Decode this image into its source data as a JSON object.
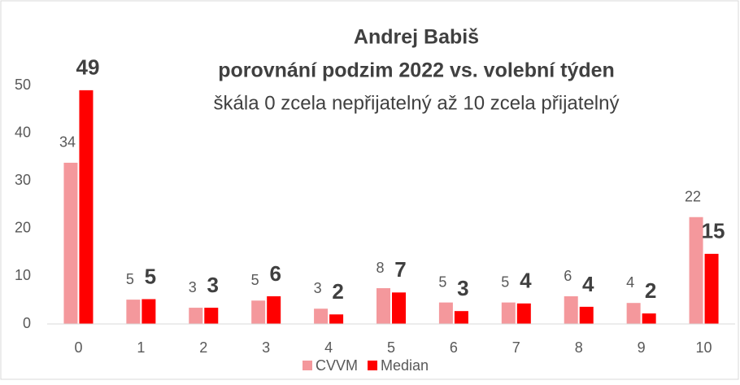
{
  "chart_data": {
    "type": "bar",
    "title": "Andrej Babiš",
    "subtitle": "porovnání podzim 2022 vs. volební týden",
    "subtitle2": "škála 0 zcela nepřijatelný až 10 zcela přijatelný",
    "categories": [
      "0",
      "1",
      "2",
      "3",
      "4",
      "5",
      "6",
      "7",
      "8",
      "9",
      "10"
    ],
    "series": [
      {
        "name": "CVVM",
        "color": "#f4989c",
        "values": [
          33.8,
          5.1,
          3.4,
          4.9,
          3.2,
          7.5,
          4.5,
          4.5,
          5.8,
          4.4,
          22.4
        ],
        "value_labels": [
          "34",
          "5",
          "3",
          "5",
          "3",
          "8",
          "5",
          "5",
          "6",
          "4",
          "22"
        ]
      },
      {
        "name": "Median",
        "color": "#ff0000",
        "values": [
          49,
          5.2,
          3.4,
          5.8,
          2.0,
          6.6,
          2.7,
          4.3,
          3.6,
          2.2,
          14.7
        ],
        "value_labels": [
          "49",
          "5",
          "3",
          "6",
          "2",
          "7",
          "3",
          "4",
          "4",
          "2",
          "15"
        ]
      }
    ],
    "ylim": [
      0,
      50
    ],
    "yticks": [
      0,
      10,
      20,
      30,
      40,
      50
    ],
    "grid": false,
    "legend": "bottom"
  }
}
